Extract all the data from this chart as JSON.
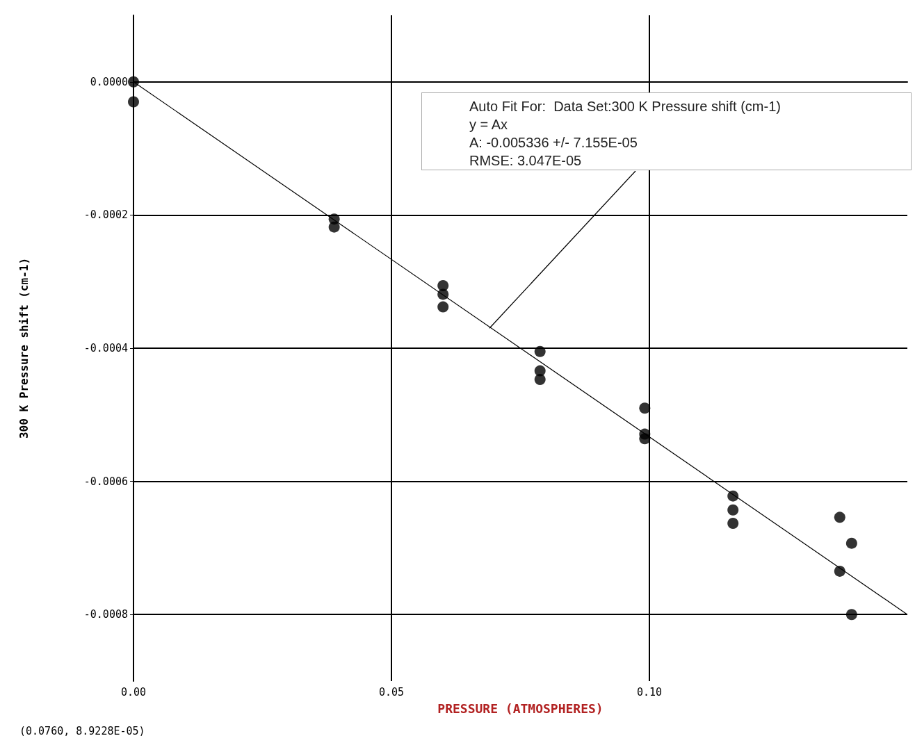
{
  "chart_data": {
    "type": "scatter",
    "xlabel": "PRESSURE (ATMOSPHERES)",
    "ylabel": "300 K Pressure shift (cm-1)",
    "xlim": [
      0,
      0.15
    ],
    "xticks": [
      {
        "value": 0,
        "label": "0.00"
      },
      {
        "value": 0.05,
        "label": "0.05"
      },
      {
        "value": 0.1,
        "label": "0.10"
      }
    ],
    "ylim": [
      -0.0009,
      0.0001
    ],
    "yticks": [
      {
        "value": 0,
        "label": "0.0000"
      },
      {
        "value": -0.0002,
        "label": "-0.0002"
      },
      {
        "value": -0.0004,
        "label": "-0.0004"
      },
      {
        "value": -0.0006,
        "label": "-0.0006"
      },
      {
        "value": -0.0008,
        "label": "-0.0008"
      }
    ],
    "grid": true,
    "marker": "circle",
    "annotations": [
      {
        "text": "Auto Fit For:  Data Set:300 K Pressure shift (cm-1)\ny = Ax\nA: -0.005336 +/- 7.155E-05\nRMSE: 3.047E-05",
        "x": 0.069,
        "y": -0.00037
      },
      "(0.0760, 8.9228E-05)"
    ],
    "series": [
      {
        "color": "#000000",
        "x": [
          0,
          0,
          0.0389,
          0.0389,
          0.06,
          0.06,
          0.06,
          0.0788,
          0.0788,
          0.0788,
          0.0991,
          0.0991,
          0.0991,
          0.1162,
          0.1162,
          0.1162,
          0.1369,
          0.1392,
          0.1369,
          0.1392
        ],
        "values": [
          0,
          -3e-05,
          -0.000206,
          -0.000218,
          -0.000306,
          -0.000319,
          -0.000338,
          -0.000405,
          -0.000434,
          -0.000447,
          -0.00049,
          -0.000529,
          -0.000536,
          -0.000622,
          -0.000643,
          -0.000663,
          -0.000654,
          -0.000693,
          -0.000735,
          -0.0008
        ]
      },
      {
        "type": "line",
        "color": "#000000",
        "marker": "none",
        "line_style": "solid",
        "x": [
          0,
          0.15
        ],
        "values": [
          0,
          -0.0008
        ]
      }
    ]
  }
}
